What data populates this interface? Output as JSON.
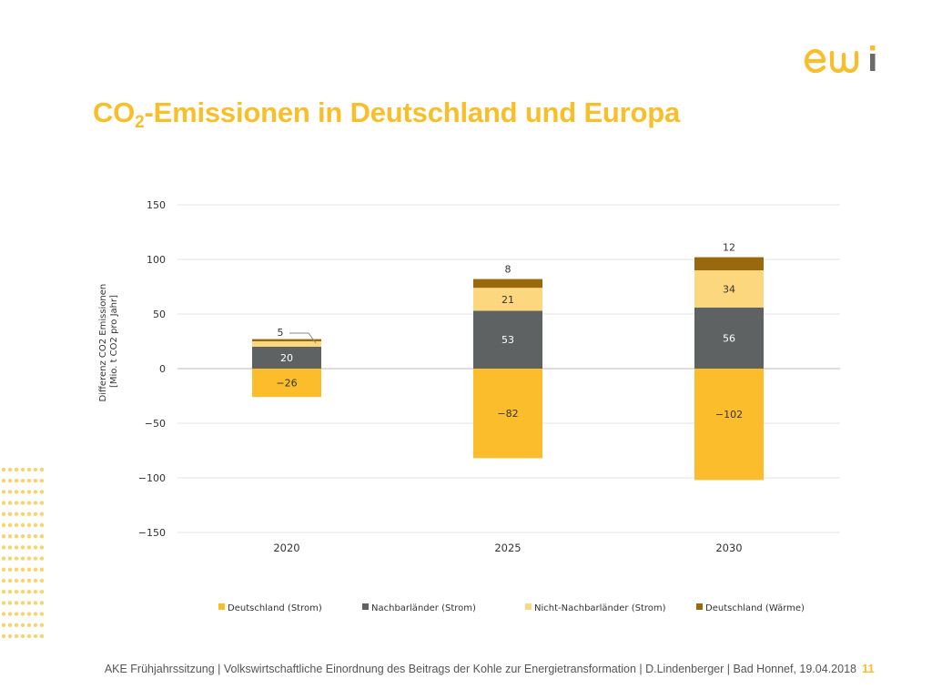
{
  "slide": {
    "title": "CO",
    "title_subscript": "2",
    "title_rest": "-Emissionen in Deutschland und Europa",
    "footer": "AKE Frühjahrssitzung | Volkswirtschaftliche Einordnung des Beitrags der Kohle zur Energietransformation | D.Lindenberger | Bad Honnef, 19.04.2018",
    "page_number": "11",
    "logo_icon": "ewi-logo",
    "accent_color": "#F9BF2A"
  },
  "chart_data": {
    "type": "bar",
    "stacked": true,
    "categories": [
      "2020",
      "2025",
      "2030"
    ],
    "ylabel": "Differenz CO2 Emissionen [Mio. t CO2 pro Jahr]",
    "ylabel_lines": [
      "Differenz CO2 Emissionen",
      "[Mio. t CO2 pro Jahr]"
    ],
    "ylim": [
      -150,
      150
    ],
    "yticks": [
      150,
      100,
      50,
      0,
      -50,
      -100,
      -150
    ],
    "ytick_labels": [
      "150",
      "100",
      "50",
      "0",
      "−50",
      "−100",
      "−150"
    ],
    "grid": true,
    "legend_position": "bottom",
    "series": [
      {
        "name": "Deutschland (Strom)",
        "color": "#FBBD2C",
        "values": [
          -26,
          -82,
          -102
        ],
        "labels": [
          "−26",
          "−82",
          "−102"
        ]
      },
      {
        "name": "Nachbarländer (Strom)",
        "color": "#5F6262",
        "values": [
          20,
          53,
          56
        ],
        "labels": [
          "20",
          "53",
          "56"
        ]
      },
      {
        "name": "Nicht-Nachbarländer (Strom)",
        "color": "#FDD77E",
        "values": [
          5,
          21,
          34
        ],
        "labels": [
          "5",
          "21",
          "34"
        ]
      },
      {
        "name": "Deutschland (Wärme)",
        "color": "#986A0D",
        "values": [
          2,
          8,
          12
        ],
        "labels": [
          "",
          "8",
          "12"
        ]
      }
    ]
  }
}
